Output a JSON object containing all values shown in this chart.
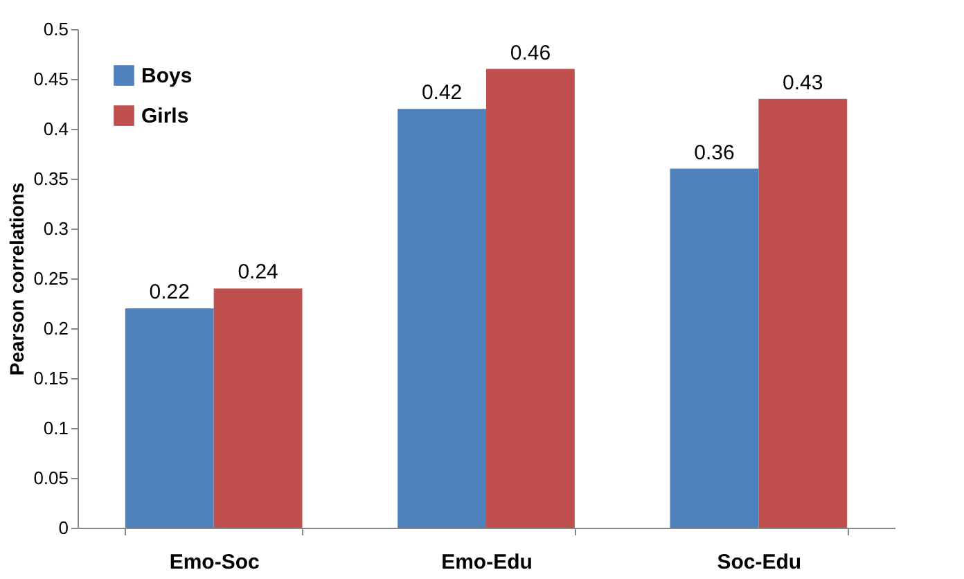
{
  "chart_data": {
    "type": "bar",
    "ylabel": "Pearson correlations",
    "categories": [
      "Emo-Soc",
      "Emo-Edu",
      "Soc-Edu"
    ],
    "series": [
      {
        "name": "Boys",
        "color": "#4f81bd",
        "values": [
          0.22,
          0.42,
          0.36
        ]
      },
      {
        "name": "Girls",
        "color": "#c0504d",
        "values": [
          0.24,
          0.46,
          0.43
        ]
      }
    ],
    "ylim": [
      0,
      0.5
    ],
    "yticks": [
      0,
      0.05,
      0.1,
      0.15,
      0.2,
      0.25,
      0.3,
      0.35,
      0.4,
      0.45,
      0.5
    ],
    "grid": false,
    "legend": "top left",
    "data_labels": true
  }
}
